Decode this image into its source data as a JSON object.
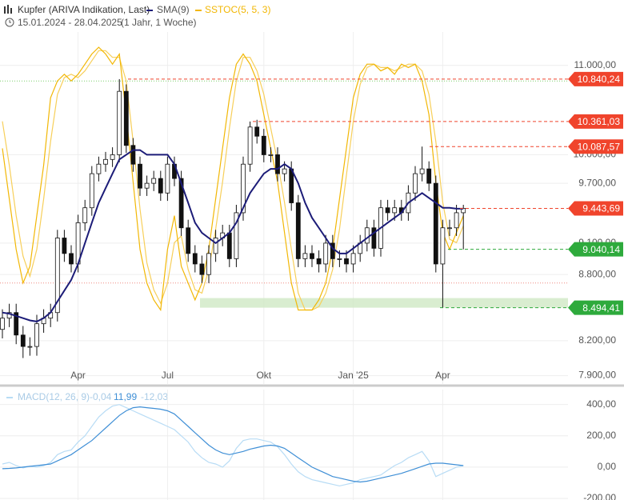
{
  "chart_data": [
    {
      "type": "candlestick",
      "title": "Kupfer (ARIVA Indikation, Last)",
      "subtitle": "15.01.2024 - 28.04.2025",
      "period": "(1 Jahr, 1 Woche)",
      "log_scale": true,
      "grid": true,
      "categories": [
        null,
        null,
        null,
        null,
        null,
        null,
        null,
        null,
        null,
        null,
        null,
        "Apr",
        null,
        null,
        null,
        null,
        null,
        null,
        null,
        null,
        null,
        null,
        null,
        null,
        "Jul",
        null,
        null,
        null,
        null,
        null,
        null,
        null,
        null,
        null,
        null,
        null,
        null,
        null,
        "Okt",
        null,
        null,
        null,
        null,
        null,
        null,
        null,
        null,
        null,
        null,
        null,
        null,
        "Jan '25",
        null,
        null,
        null,
        null,
        null,
        null,
        null,
        null,
        null,
        null,
        null,
        null,
        "Apr",
        null,
        null,
        null
      ],
      "open": [
        8300,
        8400,
        8450,
        8250,
        8150,
        8150,
        8350,
        8400,
        8450,
        9150,
        9000,
        8900,
        9300,
        9450,
        9800,
        9900,
        9950,
        10000,
        10700,
        10100,
        9900,
        9650,
        9700,
        9750,
        9600,
        9900,
        9750,
        9250,
        9000,
        8900,
        8800,
        9000,
        9150,
        9200,
        8950,
        9400,
        9900,
        10300,
        10200,
        10000,
        10000,
        9800,
        9850,
        9500,
        8950,
        9000,
        8950,
        8900,
        9100,
        8950,
        8950,
        8900,
        9000,
        9100,
        9250,
        9050,
        9450,
        9400,
        9450,
        9400,
        9600,
        9800,
        9850,
        9700,
        8900,
        9250,
        9250,
        9400
      ],
      "high": [
        8480,
        8530,
        8530,
        8330,
        8230,
        8430,
        8480,
        8530,
        9230,
        9230,
        9080,
        9380,
        9530,
        9880,
        9980,
        10030,
        10080,
        10840.24,
        10780,
        10180,
        9980,
        9780,
        9830,
        9830,
        9980,
        9980,
        9830,
        9330,
        9080,
        8980,
        9080,
        9230,
        9280,
        9280,
        9480,
        9980,
        10361.03,
        10380,
        10280,
        10080,
        10080,
        9930,
        9930,
        9580,
        9080,
        9080,
        9030,
        9180,
        9180,
        9030,
        9030,
        9080,
        9180,
        9330,
        9330,
        9530,
        9530,
        9530,
        9530,
        9680,
        9880,
        10087.57,
        9930,
        9780,
        9330,
        9330,
        9480,
        9480
      ],
      "low": [
        8220,
        8320,
        8170,
        8050,
        8070,
        8070,
        8270,
        8320,
        8370,
        8920,
        8820,
        8820,
        9220,
        9370,
        9720,
        9820,
        9870,
        9920,
        10020,
        9820,
        9570,
        9570,
        9620,
        9520,
        9520,
        9670,
        9170,
        8920,
        8820,
        8720,
        8720,
        8920,
        9070,
        8870,
        8870,
        9320,
        9820,
        10120,
        9920,
        9920,
        9720,
        9720,
        9420,
        8870,
        8870,
        8870,
        8820,
        8820,
        8870,
        8870,
        8820,
        8820,
        8920,
        9020,
        8970,
        8970,
        9320,
        9320,
        9320,
        9320,
        9520,
        9720,
        9620,
        8820,
        8494.41,
        9170,
        9170,
        9040.14
      ],
      "close": [
        8400,
        8450,
        8250,
        8150,
        8150,
        8350,
        8400,
        8450,
        9150,
        9000,
        8900,
        9300,
        9450,
        9800,
        9900,
        9950,
        10000,
        10700,
        10100,
        9900,
        9650,
        9700,
        9750,
        9600,
        9900,
        9750,
        9250,
        9000,
        8900,
        8800,
        9000,
        9150,
        9200,
        8950,
        9400,
        9900,
        10300,
        10200,
        10000,
        10000,
        9800,
        9850,
        9500,
        8950,
        9000,
        8950,
        8900,
        9100,
        8950,
        8950,
        8900,
        9000,
        9100,
        9250,
        9050,
        9450,
        9400,
        9450,
        9400,
        9600,
        9800,
        9850,
        9700,
        8900,
        9250,
        9250,
        9400,
        9443.69
      ],
      "series": [
        {
          "name": "SMA(9)",
          "color": "#1c1c78",
          "values": [
            8450,
            8440,
            8420,
            8400,
            8380,
            8370,
            8400,
            8450,
            8550,
            8650,
            8750,
            8900,
            9100,
            9300,
            9500,
            9650,
            9800,
            9950,
            10000,
            10050,
            10050,
            10000,
            10000,
            10000,
            10000,
            9900,
            9700,
            9500,
            9300,
            9200,
            9150,
            9100,
            9150,
            9200,
            9300,
            9450,
            9600,
            9700,
            9800,
            9850,
            9850,
            9900,
            9850,
            9700,
            9500,
            9350,
            9250,
            9150,
            9050,
            9000,
            9000,
            9050,
            9100,
            9150,
            9200,
            9250,
            9300,
            9350,
            9400,
            9500,
            9550,
            9600,
            9550,
            9500,
            9450,
            9450,
            9440,
            9440
          ]
        },
        {
          "name": "SSTOC(5, 5, 3)",
          "color": "#f2b705",
          "axis": "y2",
          "signal_color": "#f7cf5a",
          "values": [
            60,
            45,
            30,
            20,
            25,
            40,
            55,
            75,
            80,
            82,
            80,
            82,
            85,
            88,
            90,
            88,
            85,
            88,
            70,
            50,
            30,
            20,
            15,
            12,
            30,
            40,
            25,
            20,
            15,
            20,
            30,
            45,
            60,
            75,
            85,
            88,
            85,
            80,
            70,
            60,
            50,
            35,
            20,
            12,
            12,
            12,
            15,
            20,
            30,
            45,
            60,
            75,
            82,
            85,
            85,
            83,
            84,
            82,
            85,
            84,
            85,
            80,
            70,
            50,
            35,
            30,
            35,
            40
          ],
          "signal": [
            68,
            55,
            40,
            28,
            22,
            30,
            45,
            62,
            76,
            81,
            82,
            81,
            83,
            86,
            89,
            89,
            87,
            87,
            80,
            62,
            42,
            26,
            18,
            14,
            20,
            32,
            34,
            24,
            18,
            17,
            24,
            36,
            50,
            66,
            80,
            87,
            87,
            83,
            76,
            66,
            56,
            44,
            30,
            17,
            12,
            12,
            13,
            17,
            24,
            36,
            52,
            68,
            79,
            84,
            85,
            84,
            84,
            83,
            84,
            85,
            85,
            83,
            76,
            62,
            44,
            33,
            32,
            37
          ]
        }
      ],
      "ylim": [
        7830,
        11380
      ],
      "yticks": [
        {
          "value": 7900,
          "label": "7.900,00"
        },
        {
          "value": 8200,
          "label": "8.200,00"
        },
        {
          "value": 8800,
          "label": "8.800,00"
        },
        {
          "value": 9100,
          "label": "9.100,00"
        },
        {
          "value": 9700,
          "label": "9.700,00"
        },
        {
          "value": 10000,
          "label": "10.000,00"
        },
        {
          "value": 11000,
          "label": "11.000,00"
        }
      ],
      "y2lim": [
        0,
        100
      ],
      "y2levels": [
        80,
        20
      ],
      "price_levels": [
        {
          "value": 10840.24,
          "label": "10.840,24",
          "color": "#f0442c"
        },
        {
          "value": 10361.03,
          "label": "10.361,03",
          "color": "#f0442c"
        },
        {
          "value": 10087.57,
          "label": "10.087,57",
          "color": "#f0442c"
        },
        {
          "value": 9443.69,
          "label": "9.443,69",
          "color": "#f0442c"
        },
        {
          "value": 9040.14,
          "label": "9.040,14",
          "color": "#2eaa3c"
        },
        {
          "value": 8494.41,
          "label": "8.494,41",
          "color": "#2eaa3c"
        }
      ]
    },
    {
      "type": "line",
      "series": [
        {
          "name": "MACD(12, 26, 9)",
          "color": "#b8dcf5",
          "signal_color": "#3f8fd6",
          "values": [
            20,
            30,
            10,
            -5,
            5,
            0,
            10,
            30,
            80,
            100,
            110,
            160,
            200,
            260,
            320,
            360,
            390,
            400,
            380,
            360,
            340,
            320,
            300,
            280,
            260,
            240,
            200,
            160,
            100,
            60,
            30,
            20,
            0,
            40,
            120,
            170,
            180,
            180,
            170,
            160,
            130,
            80,
            20,
            -30,
            -60,
            -80,
            -90,
            -100,
            -110,
            -120,
            -110,
            -100,
            -80,
            -70,
            -60,
            -50,
            -20,
            10,
            30,
            60,
            80,
            100,
            40,
            -60,
            -40,
            -20,
            0,
            10
          ],
          "signal": [
            -10,
            -8,
            -5,
            0,
            5,
            10,
            15,
            20,
            40,
            60,
            80,
            110,
            140,
            170,
            210,
            250,
            290,
            330,
            360,
            380,
            385,
            380,
            375,
            370,
            360,
            340,
            300,
            260,
            220,
            180,
            140,
            110,
            90,
            80,
            90,
            100,
            115,
            125,
            135,
            140,
            135,
            120,
            90,
            60,
            30,
            0,
            -20,
            -40,
            -60,
            -70,
            -80,
            -90,
            -95,
            -90,
            -80,
            -70,
            -60,
            -50,
            -40,
            -25,
            -10,
            5,
            20,
            25,
            25,
            20,
            15,
            10
          ]
        }
      ],
      "current_values": [
        {
          "value": -0.04,
          "label": "-0,04"
        },
        {
          "value": 11.99,
          "label": "11,99"
        },
        {
          "value": -12.03,
          "label": "-12,03"
        }
      ],
      "ylim": [
        -210,
        480
      ],
      "yticks": [
        {
          "value": 400,
          "label": "400,00"
        },
        {
          "value": 200,
          "label": "200,00"
        },
        {
          "value": 0,
          "label": "0,00"
        },
        {
          "value": -200,
          "label": "-200,00"
        }
      ],
      "grid": true
    }
  ]
}
